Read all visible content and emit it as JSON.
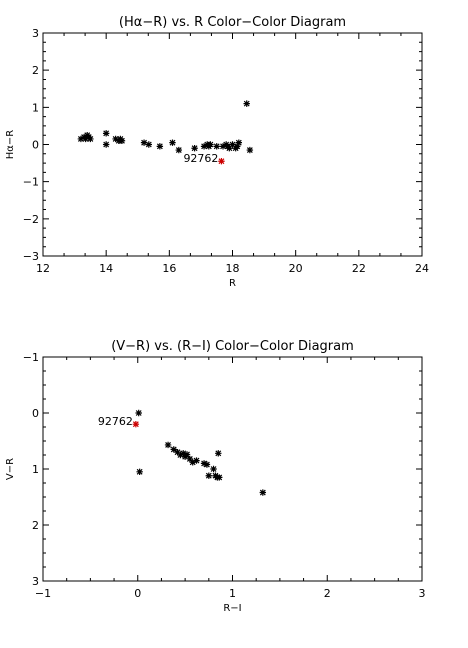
{
  "chart_data": [
    {
      "type": "scatter",
      "title": "(Hα−R) vs. R Color−Color Diagram",
      "xlabel": "R",
      "ylabel": "Hα−R",
      "xlim": [
        12,
        24
      ],
      "ylim": [
        -3,
        3
      ],
      "xticks": [
        "12",
        "14",
        "16",
        "18",
        "20",
        "22",
        "24"
      ],
      "yticks": [
        "3",
        "2",
        "1",
        "0",
        "−1",
        "−2",
        "−3"
      ],
      "grid": false,
      "series": [
        {
          "marker": "asterisk",
          "color": "#000000",
          "x": [
            13.2,
            13.3,
            13.35,
            13.4,
            13.45,
            13.5,
            14.0,
            14.0,
            14.3,
            14.4,
            14.45,
            14.5,
            15.2,
            15.35,
            15.7,
            16.1,
            16.3,
            16.8,
            17.1,
            17.2,
            17.25,
            17.3,
            17.5,
            17.7,
            17.8,
            17.85,
            17.9,
            18.0,
            18.1,
            18.15,
            18.2,
            18.45,
            18.55
          ],
          "y": [
            0.15,
            0.2,
            0.15,
            0.25,
            0.2,
            0.15,
            0.3,
            0.0,
            0.15,
            0.1,
            0.15,
            0.1,
            0.05,
            0.0,
            -0.05,
            0.05,
            -0.15,
            -0.1,
            -0.05,
            0.0,
            -0.05,
            0.0,
            -0.05,
            -0.05,
            0.0,
            -0.05,
            -0.1,
            0.0,
            -0.1,
            -0.05,
            0.05,
            1.1,
            -0.15
          ]
        },
        {
          "marker": "asterisk",
          "color": "#cc0000",
          "x": [
            17.65
          ],
          "y": [
            -0.45
          ]
        }
      ],
      "annotations": [
        {
          "text": "92762",
          "x": 17.65,
          "y": -0.45
        }
      ]
    },
    {
      "type": "scatter",
      "title": "(V−R) vs. (R−I) Color−Color Diagram",
      "xlabel": "R−I",
      "ylabel": "V−R",
      "xlim": [
        -1,
        3
      ],
      "ylim": [
        3,
        -1
      ],
      "xticks": [
        "−1",
        "0",
        "1",
        "2",
        "3"
      ],
      "yticks": [
        "−1",
        "0",
        "1",
        "2",
        "3"
      ],
      "grid": false,
      "series": [
        {
          "marker": "asterisk",
          "color": "#000000",
          "x": [
            0.01,
            0.02,
            0.32,
            0.38,
            0.42,
            0.45,
            0.48,
            0.5,
            0.52,
            0.55,
            0.58,
            0.62,
            0.7,
            0.73,
            0.75,
            0.8,
            0.82,
            0.84,
            0.86,
            0.85,
            1.32
          ],
          "y": [
            0.0,
            1.05,
            0.57,
            0.65,
            0.7,
            0.75,
            0.72,
            0.78,
            0.74,
            0.82,
            0.88,
            0.85,
            0.9,
            0.92,
            1.12,
            1.0,
            1.12,
            1.15,
            1.15,
            0.72,
            1.42
          ]
        },
        {
          "marker": "asterisk",
          "color": "#cc0000",
          "x": [
            -0.02
          ],
          "y": [
            0.2
          ]
        }
      ],
      "annotations": [
        {
          "text": "92762",
          "x": -0.02,
          "y": 0.2
        }
      ]
    }
  ]
}
